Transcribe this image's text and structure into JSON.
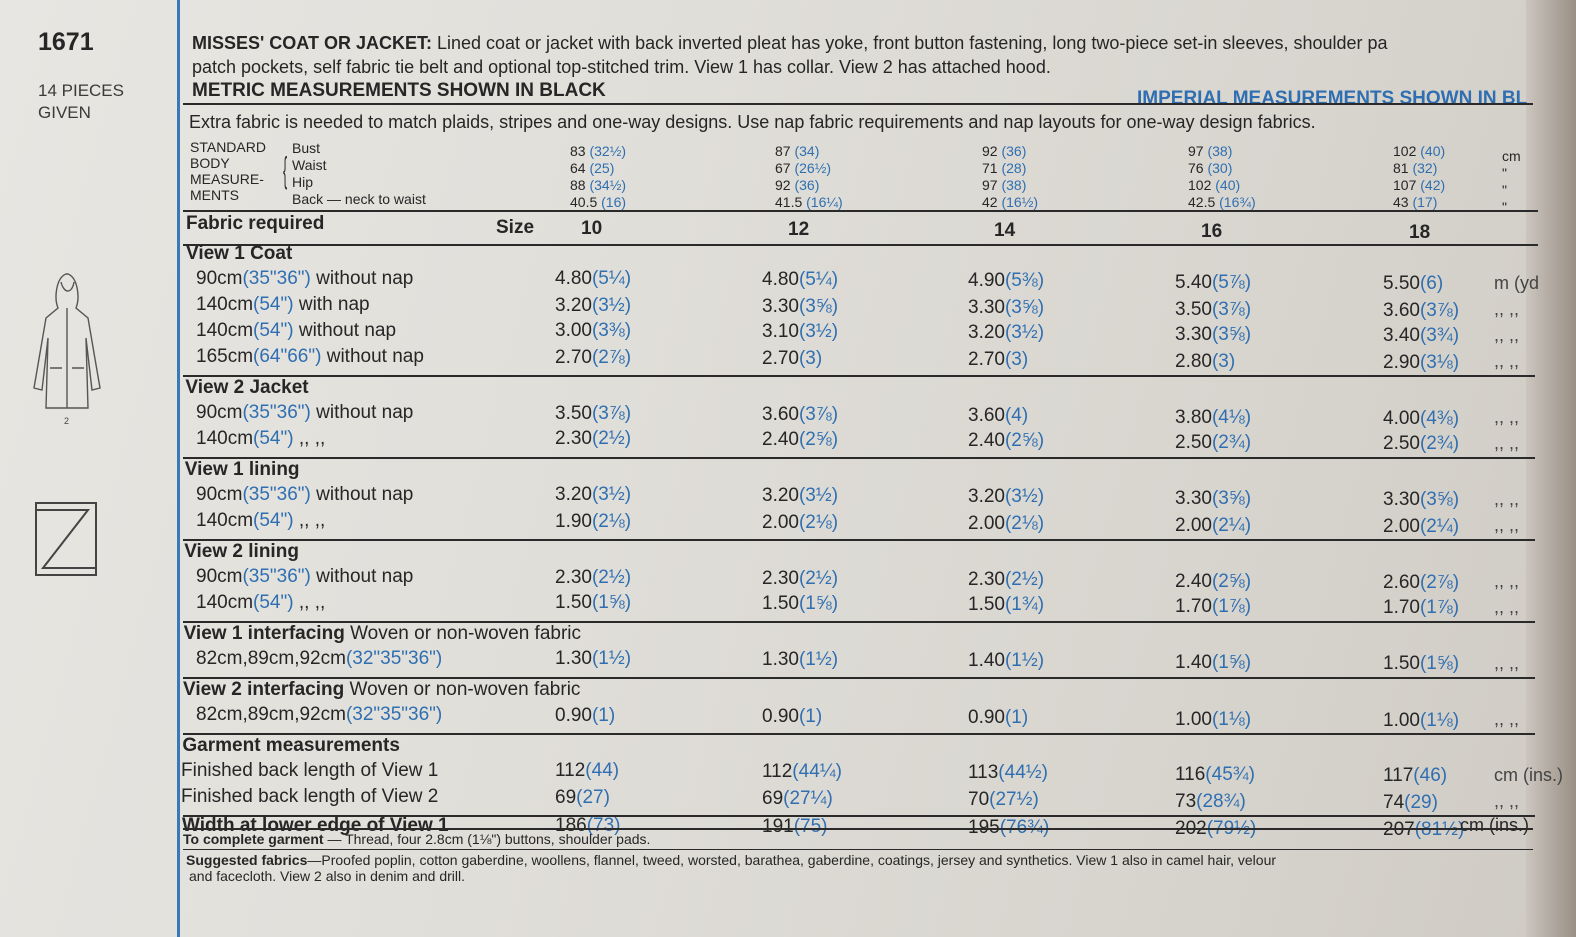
{
  "pattern_number": "1671",
  "pieces_given": [
    "14 PIECES",
    "GIVEN"
  ],
  "description": {
    "title": "MISSES' COAT OR JACKET:",
    "line1": "Lined coat or jacket with back inverted pleat has yoke, front button fastening, long two-piece set-in sleeves, shoulder pa",
    "line2": "patch pockets, self fabric tie belt and optional top-stitched trim. View 1 has collar. View 2 has attached hood."
  },
  "metric_heading": "METRIC MEASUREMENTS SHOWN IN BLACK",
  "imperial_heading": "IMPERIAL MEASUREMENTS SHOWN IN BL",
  "extra_fabric_note": "Extra fabric is needed to match plaids, stripes and one-way designs. Use nap fabric requirements and nap layouts for one-way design fabrics.",
  "body": {
    "label_lines": [
      "STANDARD",
      "BODY",
      "MEASURE-",
      "MENTS"
    ],
    "rows": [
      {
        "label": "Bust",
        "unit": "cm",
        "values": [
          [
            "83",
            "(32½)"
          ],
          [
            "87",
            "(34)"
          ],
          [
            "92",
            "(36)"
          ],
          [
            "97",
            "(38)"
          ],
          [
            "102",
            "(40)"
          ]
        ]
      },
      {
        "label": "Waist",
        "unit": "\"",
        "values": [
          [
            "64",
            "(25)"
          ],
          [
            "67",
            "(26½)"
          ],
          [
            "71",
            "(28)"
          ],
          [
            "76",
            "(30)"
          ],
          [
            "81",
            "(32)"
          ]
        ]
      },
      {
        "label": "Hip",
        "unit": "\"",
        "values": [
          [
            "88",
            "(34½)"
          ],
          [
            "92",
            "(36)"
          ],
          [
            "97",
            "(38)"
          ],
          [
            "102",
            "(40)"
          ],
          [
            "107",
            "(42)"
          ]
        ]
      },
      {
        "label": "Back — neck to waist",
        "unit": "\"",
        "values": [
          [
            "40.5",
            "(16)"
          ],
          [
            "41.5",
            "(16¼)"
          ],
          [
            "42",
            "(16½)"
          ],
          [
            "42.5",
            "(16¾)"
          ],
          [
            "43",
            "(17)"
          ]
        ]
      }
    ]
  },
  "fabric_required_label": "Fabric required",
  "size_label": "Size",
  "sizes": [
    "10",
    "12",
    "14",
    "16",
    "18"
  ],
  "sections": [
    {
      "title": "View 1  Coat",
      "rows": [
        {
          "m": "90cm",
          "i": "(35\"36\")",
          "desc": "without nap",
          "unit": "m (yd",
          "values": [
            [
              "4.80",
              "(5¼)"
            ],
            [
              "4.80",
              "(5¼)"
            ],
            [
              "4.90",
              "(5⅜)"
            ],
            [
              "5.40",
              "(5⅞)"
            ],
            [
              "5.50",
              "(6)"
            ]
          ]
        },
        {
          "m": "140cm",
          "i": "(54\")",
          "desc": "with nap",
          "unit": ",, ,,",
          "values": [
            [
              "3.20",
              "(3½)"
            ],
            [
              "3.30",
              "(3⅝)"
            ],
            [
              "3.30",
              "(3⅝)"
            ],
            [
              "3.50",
              "(3⅞)"
            ],
            [
              "3.60",
              "(3⅞)"
            ]
          ]
        },
        {
          "m": "140cm",
          "i": "(54\")",
          "desc": "without nap",
          "unit": ",, ,,",
          "values": [
            [
              "3.00",
              "(3⅜)"
            ],
            [
              "3.10",
              "(3½)"
            ],
            [
              "3.20",
              "(3½)"
            ],
            [
              "3.30",
              "(3⅝)"
            ],
            [
              "3.40",
              "(3¾)"
            ]
          ]
        },
        {
          "m": "165cm",
          "i": "(64\"66\")",
          "desc": "without nap",
          "unit": ",, ,,",
          "values": [
            [
              "2.70",
              "(2⅞)"
            ],
            [
              "2.70",
              "(3)"
            ],
            [
              "2.70",
              "(3)"
            ],
            [
              "2.80",
              "(3)"
            ],
            [
              "2.90",
              "(3⅛)"
            ]
          ]
        }
      ]
    },
    {
      "title": "View 2   Jacket",
      "rows": [
        {
          "m": "90cm",
          "i": "(35\"36\")",
          "desc": "without nap",
          "unit": ",, ,,",
          "values": [
            [
              "3.50",
              "(3⅞)"
            ],
            [
              "3.60",
              "(3⅞)"
            ],
            [
              "3.60",
              "(4)"
            ],
            [
              "3.80",
              "(4⅛)"
            ],
            [
              "4.00",
              "(4⅜)"
            ]
          ]
        },
        {
          "m": "140cm",
          "i": "(54\")",
          "desc": ",,       ,,",
          "unit": ",, ,,",
          "values": [
            [
              "2.30",
              "(2½)"
            ],
            [
              "2.40",
              "(2⅝)"
            ],
            [
              "2.40",
              "(2⅝)"
            ],
            [
              "2.50",
              "(2¾)"
            ],
            [
              "2.50",
              "(2¾)"
            ]
          ]
        }
      ]
    },
    {
      "title": "View 1 lining",
      "rows": [
        {
          "m": "90cm",
          "i": "(35\"36\")",
          "desc": "without nap",
          "unit": ",, ,,",
          "values": [
            [
              "3.20",
              "(3½)"
            ],
            [
              "3.20",
              "(3½)"
            ],
            [
              "3.20",
              "(3½)"
            ],
            [
              "3.30",
              "(3⅝)"
            ],
            [
              "3.30",
              "(3⅝)"
            ]
          ]
        },
        {
          "m": "140cm",
          "i": "(54\")",
          "desc": ",,       ,,",
          "unit": ",, ,,",
          "values": [
            [
              "1.90",
              "(2⅛)"
            ],
            [
              "2.00",
              "(2⅛)"
            ],
            [
              "2.00",
              "(2⅛)"
            ],
            [
              "2.00",
              "(2¼)"
            ],
            [
              "2.00",
              "(2¼)"
            ]
          ]
        }
      ]
    },
    {
      "title": "View 2 lining",
      "rows": [
        {
          "m": "90cm",
          "i": "(35\"36\")",
          "desc": "without nap",
          "unit": ",, ,,",
          "values": [
            [
              "2.30",
              "(2½)"
            ],
            [
              "2.30",
              "(2½)"
            ],
            [
              "2.30",
              "(2½)"
            ],
            [
              "2.40",
              "(2⅝)"
            ],
            [
              "2.60",
              "(2⅞)"
            ]
          ]
        },
        {
          "m": "140cm",
          "i": "(54\")",
          "desc": ",,       ,,",
          "unit": ",, ,,",
          "values": [
            [
              "1.50",
              "(1⅝)"
            ],
            [
              "1.50",
              "(1⅝)"
            ],
            [
              "1.50",
              "(1¾)"
            ],
            [
              "1.70",
              "(1⅞)"
            ],
            [
              "1.70",
              "(1⅞)"
            ]
          ]
        }
      ]
    },
    {
      "title": "View 1 interfacing",
      "subtitle": "Woven or non-woven fabric",
      "rows": [
        {
          "m": "82cm,89cm,92cm",
          "i": "(32\"35\"36\")",
          "desc": "",
          "unit": ",, ,,",
          "values": [
            [
              "1.30",
              "(1½)"
            ],
            [
              "1.30",
              "(1½)"
            ],
            [
              "1.40",
              "(1½)"
            ],
            [
              "1.40",
              "(1⅝)"
            ],
            [
              "1.50",
              "(1⅝)"
            ]
          ]
        }
      ]
    },
    {
      "title": "View 2 interfacing",
      "subtitle": "Woven or non-woven fabric",
      "rows": [
        {
          "m": "82cm,89cm,92cm",
          "i": "(32\"35\"36\")",
          "desc": "",
          "unit": ",, ,,",
          "values": [
            [
              "0.90",
              "(1)"
            ],
            [
              "0.90",
              "(1)"
            ],
            [
              "0.90",
              "(1)"
            ],
            [
              "1.00",
              "(1⅛)"
            ],
            [
              "1.00",
              "(1⅛)"
            ]
          ]
        }
      ]
    },
    {
      "title": "Garment measurements",
      "rows": [
        {
          "m": "Finished back length of View 1",
          "i": "",
          "desc": "",
          "unit": "cm (ins.)",
          "values": [
            [
              "112",
              "(44)"
            ],
            [
              "112",
              "(44¼)"
            ],
            [
              "113",
              "(44½)"
            ],
            [
              "116",
              "(45¾)"
            ],
            [
              "117",
              "(46)"
            ]
          ]
        },
        {
          "m": "Finished back length of View 2",
          "i": "",
          "desc": "",
          "unit": ",, ,,",
          "values": [
            [
              "69",
              "(27)"
            ],
            [
              "69",
              "(27¼)"
            ],
            [
              "70",
              "(27½)"
            ],
            [
              "73",
              "(28¾)"
            ],
            [
              "74",
              "(29)"
            ]
          ]
        }
      ]
    }
  ],
  "width_row": {
    "label": "Width at lower edge of View 1",
    "unit": "cm (ins.)",
    "values": [
      [
        "186",
        "(73)"
      ],
      [
        "191",
        "(75)"
      ],
      [
        "195",
        "(76¾)"
      ],
      [
        "202",
        "(79½)"
      ],
      [
        "207",
        "(81½)"
      ]
    ]
  },
  "complete_garment": {
    "label": "To complete garment",
    "text": "— Thread, four 2.8cm (1⅛\") buttons,  shoulder pads."
  },
  "suggested_fabrics": {
    "label": "Suggested fabrics",
    "text1": "—Proofed poplin, cotton gaberdine, woollens, flannel, tweed, worsted, barathea, gaberdine, coatings, jersey and synthetics. View 1 also in camel hair, velour",
    "text2": "and facecloth. View 2 also in denim and drill."
  },
  "view_number_label": "2"
}
